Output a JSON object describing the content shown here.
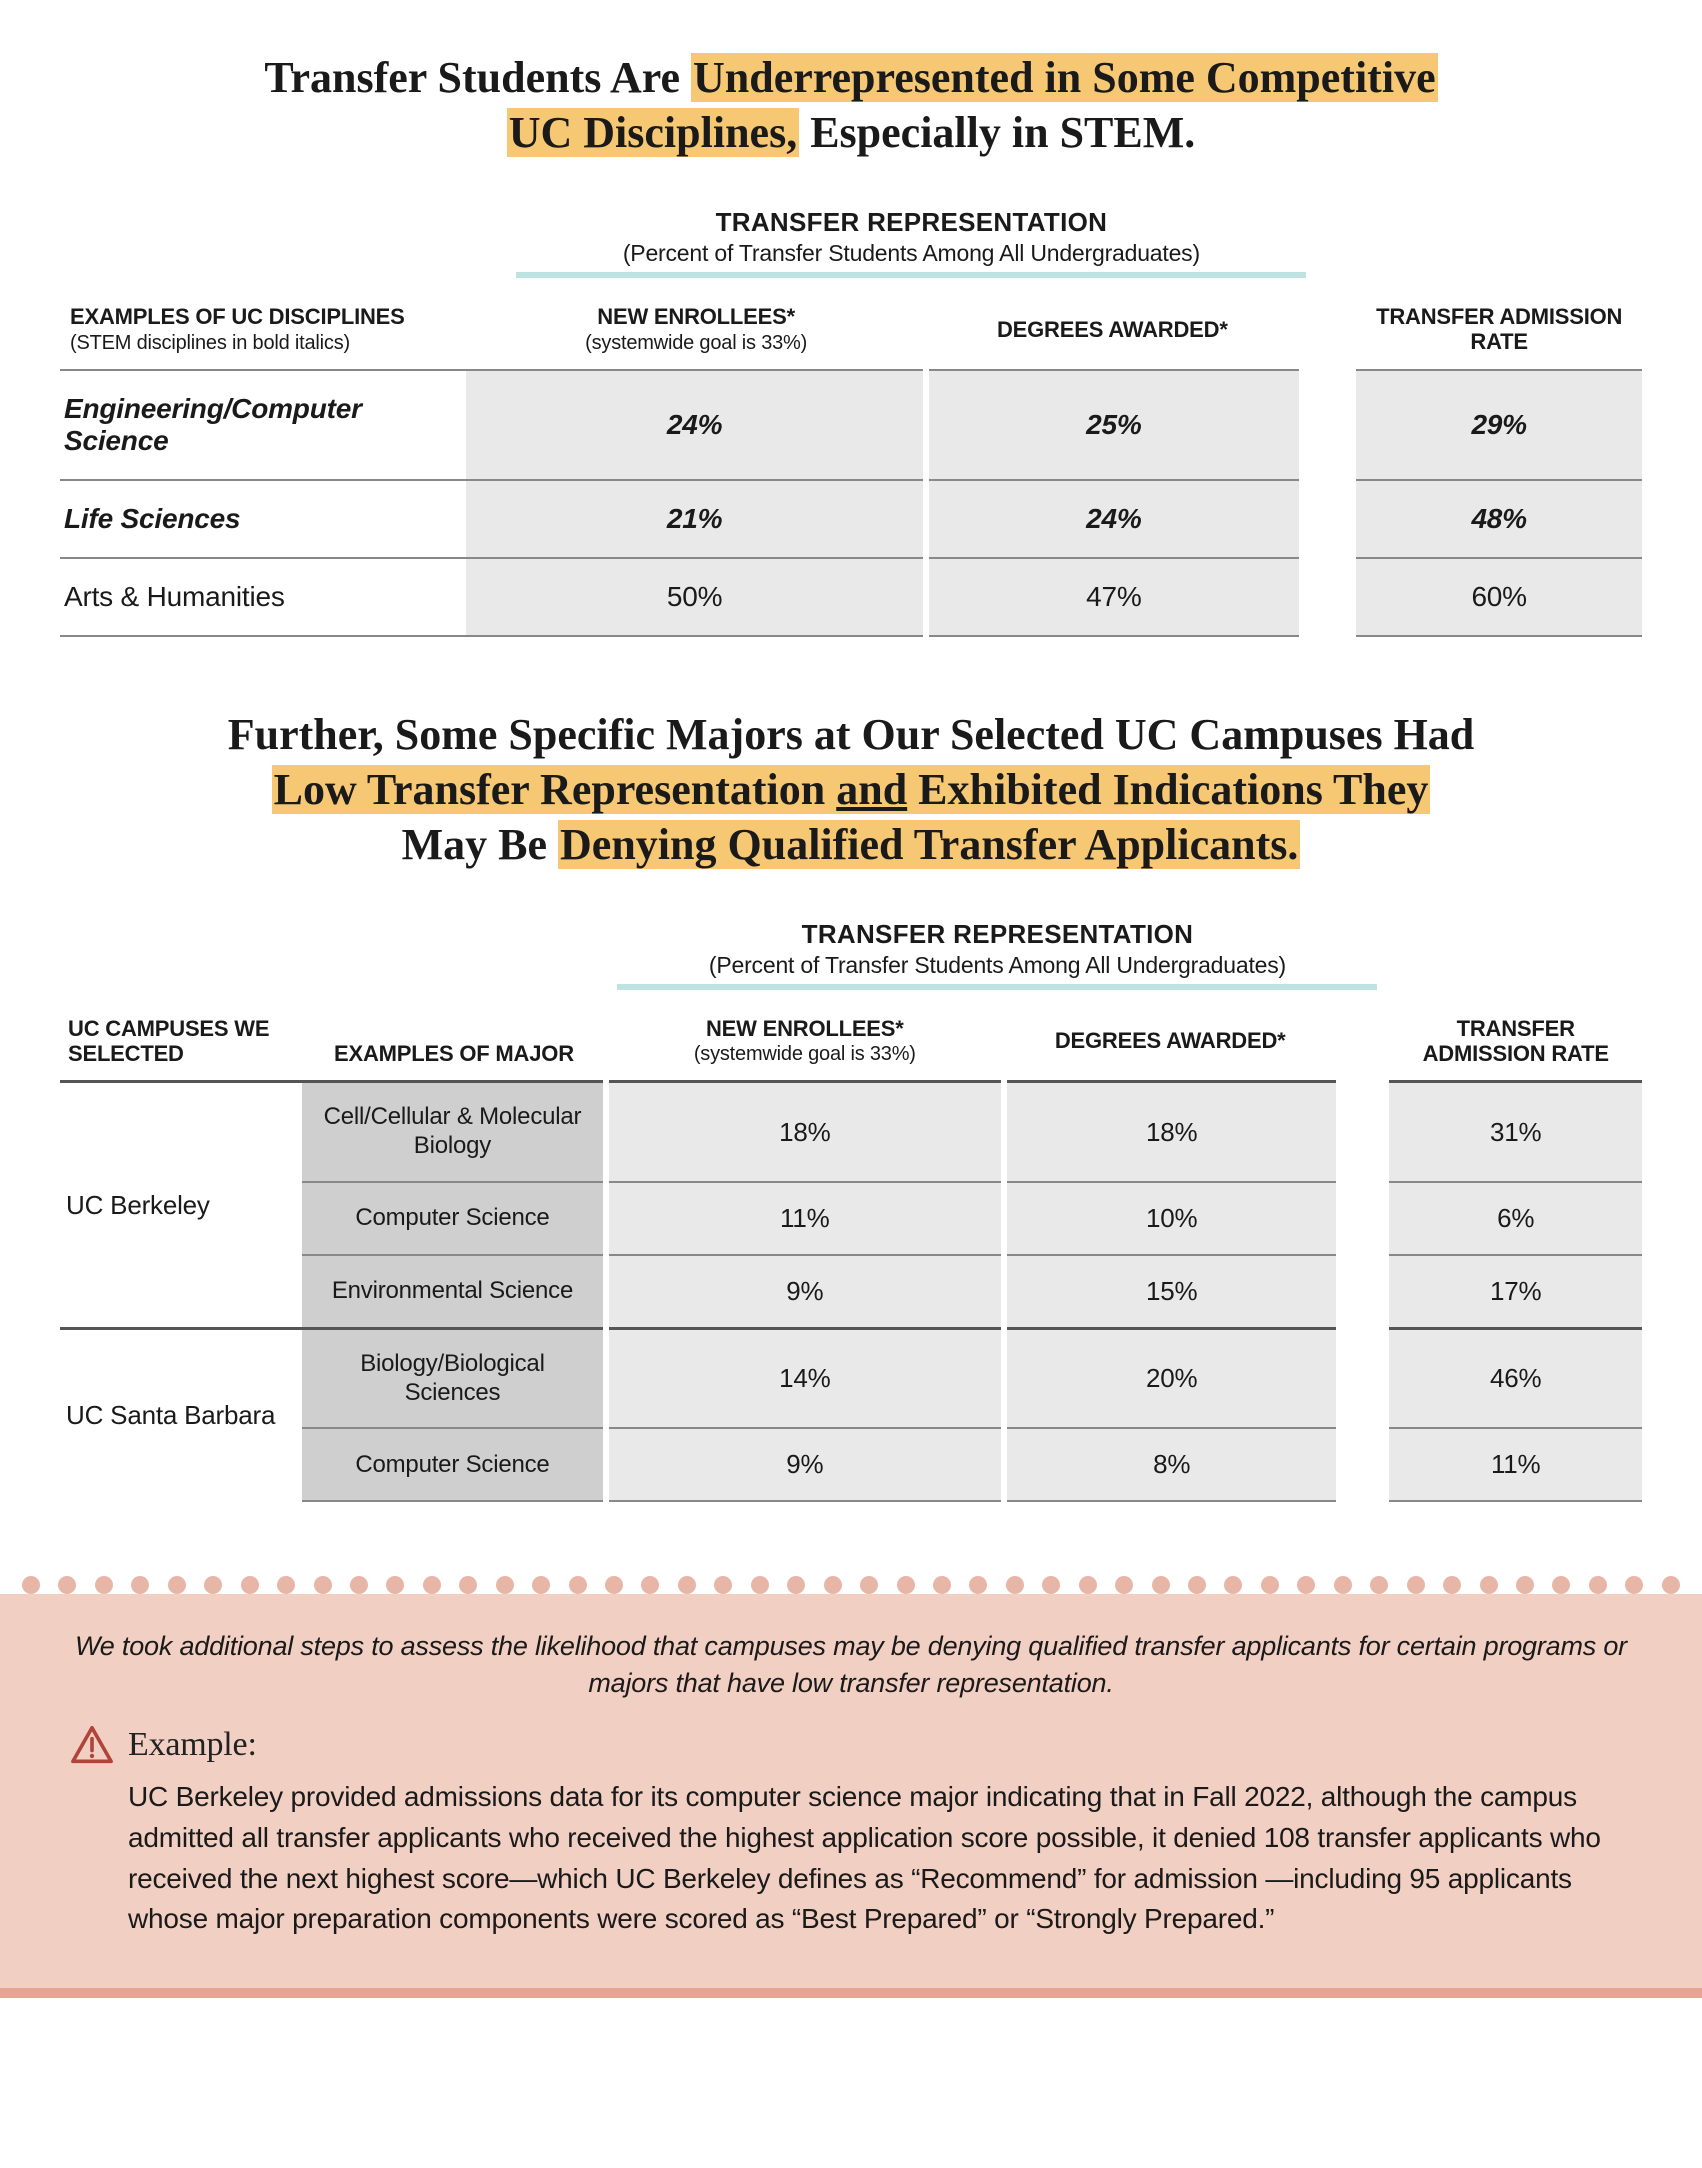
{
  "colors": {
    "highlight": "#f7c873",
    "teal_underline": "#bfe3e0",
    "table_cell_bg": "#e9e9e9",
    "table_major_bg": "#cfcfcf",
    "callout_bg": "#f1cfc3",
    "callout_border": "#e6a592",
    "dot_color": "#e8b6a6",
    "warn_stroke": "#b0433a"
  },
  "title1": {
    "pre": "Transfer Students Are ",
    "hl1": "Underrepresented in Some Competitive",
    "mid_break": " ",
    "hl2": "UC Disciplines,",
    "post": " Especially in STEM."
  },
  "rep_header": {
    "title": "TRANSFER REPRESENTATION",
    "sub": "(Percent of Transfer Students Among All Undergraduates)"
  },
  "table1": {
    "col_discipline": "EXAMPLES OF UC DISCIPLINES",
    "col_discipline_sub": "(STEM disciplines in bold italics)",
    "col_new": "NEW ENROLLEES*",
    "col_new_sub": "(systemwide goal is 33%)",
    "col_deg": "DEGREES AWARDED*",
    "col_rate": "TRANSFER ADMISSION RATE",
    "rows": [
      {
        "discipline": "Engineering/Computer Science",
        "stem": true,
        "new": "24%",
        "deg": "25%",
        "rate": "29%"
      },
      {
        "discipline": "Life Sciences",
        "stem": true,
        "new": "21%",
        "deg": "24%",
        "rate": "48%"
      },
      {
        "discipline": "Arts & Humanities",
        "stem": false,
        "new": "50%",
        "deg": "47%",
        "rate": "60%"
      }
    ]
  },
  "title2": {
    "line1_pre": "Further, Some Specific Majors at Our Selected UC Campuses Had",
    "hl1": "Low Transfer Representation ",
    "ul": "and",
    "hl2": " Exhibited Indications They",
    "line3_pre": "May Be ",
    "hl3": "Denying Qualified Transfer Applicants."
  },
  "table2": {
    "col_campus": "UC CAMPUSES WE SELECTED",
    "col_major": "EXAMPLES OF MAJOR",
    "col_new": "NEW ENROLLEES*",
    "col_new_sub": "(systemwide goal is 33%)",
    "col_deg": "DEGREES AWARDED*",
    "col_rate": "TRANSFER ADMISSION RATE",
    "groups": [
      {
        "campus": "UC Berkeley",
        "rows": [
          {
            "major": "Cell/Cellular & Molecular Biology",
            "new": "18%",
            "deg": "18%",
            "rate": "31%"
          },
          {
            "major": "Computer Science",
            "new": "11%",
            "deg": "10%",
            "rate": "6%"
          },
          {
            "major": "Environmental Science",
            "new": "9%",
            "deg": "15%",
            "rate": "17%"
          }
        ]
      },
      {
        "campus": "UC Santa Barbara",
        "rows": [
          {
            "major": "Biology/Biological Sciences",
            "new": "14%",
            "deg": "20%",
            "rate": "46%"
          },
          {
            "major": "Computer Science",
            "new": "9%",
            "deg": "8%",
            "rate": "11%"
          }
        ]
      }
    ]
  },
  "callout": {
    "intro": "We took additional steps to assess the likelihood that campuses may be denying qualified transfer applicants for certain programs or majors that have low transfer representation.",
    "example_label": "Example:",
    "example_body": "UC Berkeley provided admissions data for its computer science major indicating that in Fall 2022, although the campus admitted all transfer applicants who received the highest application score possible, it denied 108 transfer applicants who received the next highest score—which UC Berkeley defines as “Recommend” for admission —including 95 applicants whose major preparation components were scored as “Best Prepared” or “Strongly Prepared.”",
    "dot_count": 46
  }
}
